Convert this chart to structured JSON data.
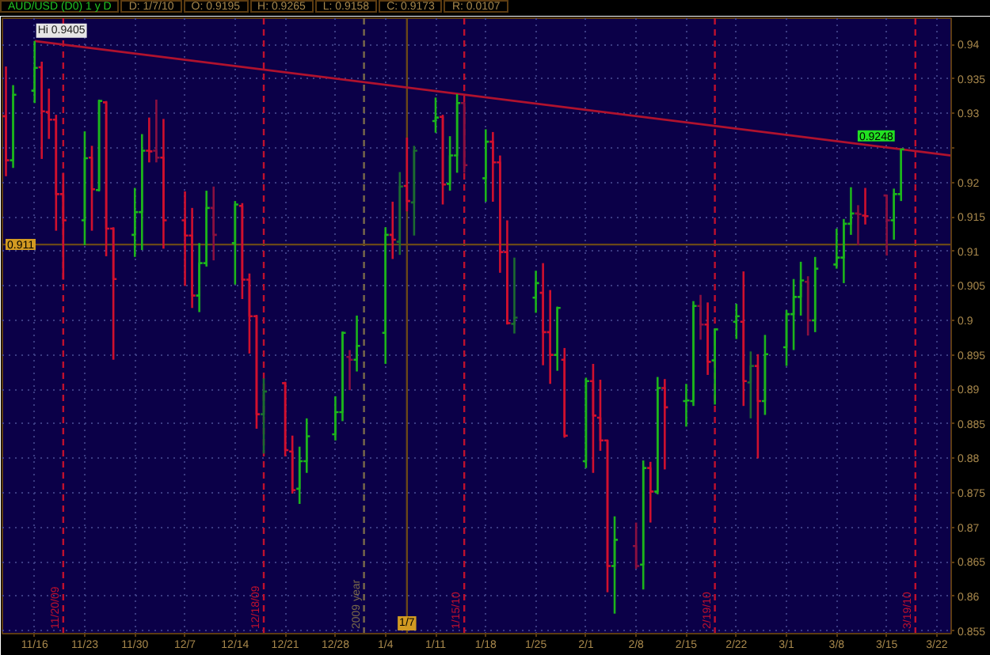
{
  "chart_data": {
    "type": "candlestick",
    "title": "AUD/USD (D0) 1 y D",
    "annotations": [
      "D: 1/7/10",
      "O: 0.9195",
      "H: 0.9265",
      "L: 0.9158",
      "C: 0.9173",
      "R: 0.0107",
      {
        "text": "Hi 0.9405",
        "x": "2009-11-16",
        "y": 0.9405
      },
      {
        "text": "0.9248",
        "x": "2010-03-17",
        "y": 0.9248
      }
    ],
    "x": [
      "2009-11-12",
      "2009-11-13",
      "2009-11-16",
      "2009-11-17",
      "2009-11-18",
      "2009-11-19",
      "2009-11-20",
      "2009-11-23",
      "2009-11-24",
      "2009-11-25",
      "2009-11-26",
      "2009-11-27",
      "2009-11-30",
      "2009-12-01",
      "2009-12-02",
      "2009-12-03",
      "2009-12-04",
      "2009-12-07",
      "2009-12-08",
      "2009-12-09",
      "2009-12-10",
      "2009-12-11",
      "2009-12-14",
      "2009-12-15",
      "2009-12-16",
      "2009-12-17",
      "2009-12-18",
      "2009-12-21",
      "2009-12-22",
      "2009-12-23",
      "2009-12-24",
      "2009-12-28",
      "2009-12-29",
      "2009-12-30",
      "2009-12-31",
      "2010-01-04",
      "2010-01-05",
      "2010-01-06",
      "2010-01-07",
      "2010-01-08",
      "2010-01-11",
      "2010-01-12",
      "2010-01-13",
      "2010-01-14",
      "2010-01-15",
      "2010-01-18",
      "2010-01-19",
      "2010-01-20",
      "2010-01-21",
      "2010-01-22",
      "2010-01-25",
      "2010-01-26",
      "2010-01-27",
      "2010-01-28",
      "2010-01-29",
      "2010-02-01",
      "2010-02-02",
      "2010-02-03",
      "2010-02-04",
      "2010-02-05",
      "2010-02-08",
      "2010-02-09",
      "2010-02-10",
      "2010-02-11",
      "2010-02-12",
      "2010-02-15",
      "2010-02-16",
      "2010-02-17",
      "2010-02-18",
      "2010-02-19",
      "2010-02-22",
      "2010-02-23",
      "2010-02-24",
      "2010-02-25",
      "2010-02-26",
      "2010-03-01",
      "2010-03-02",
      "2010-03-03",
      "2010-03-04",
      "2010-03-05",
      "2010-03-08",
      "2010-03-09",
      "2010-03-10",
      "2010-03-11",
      "2010-03-12",
      "2010-03-15",
      "2010-03-16",
      "2010-03-17"
    ],
    "ohlc": [
      [
        0.9296,
        0.9368,
        0.9209,
        0.9232
      ],
      [
        0.9232,
        0.9341,
        0.9221,
        0.9327
      ],
      [
        0.9333,
        0.9405,
        0.9315,
        0.9366
      ],
      [
        0.9367,
        0.9375,
        0.9234,
        0.9303
      ],
      [
        0.9302,
        0.9336,
        0.9263,
        0.9291
      ],
      [
        0.9291,
        0.9298,
        0.913,
        0.9183
      ],
      [
        0.9183,
        0.9214,
        0.9059,
        0.9145
      ],
      [
        0.9145,
        0.9274,
        0.9109,
        0.9235
      ],
      [
        0.9236,
        0.9253,
        0.913,
        0.919
      ],
      [
        0.9189,
        0.932,
        0.9187,
        0.9318
      ],
      [
        0.9316,
        0.9318,
        0.9093,
        0.9133
      ],
      [
        0.9133,
        0.9135,
        0.8943,
        0.906
      ],
      [
        0.9124,
        0.9192,
        0.9092,
        0.9157
      ],
      [
        0.9157,
        0.927,
        0.9102,
        0.9246
      ],
      [
        0.9246,
        0.9294,
        0.9229,
        0.9245
      ],
      [
        0.9246,
        0.932,
        0.9229,
        0.9236
      ],
      [
        0.9236,
        0.9292,
        0.9104,
        0.9145
      ],
      [
        0.9145,
        0.9187,
        0.905,
        0.9123
      ],
      [
        0.9123,
        0.9163,
        0.9018,
        0.9036
      ],
      [
        0.9036,
        0.9112,
        0.9012,
        0.9083
      ],
      [
        0.9083,
        0.9188,
        0.9078,
        0.9163
      ],
      [
        0.9163,
        0.9194,
        0.9087,
        0.9124
      ],
      [
        0.9112,
        0.9173,
        0.9052,
        0.9168
      ],
      [
        0.9166,
        0.917,
        0.9031,
        0.9059
      ],
      [
        0.9059,
        0.9068,
        0.8952,
        0.9006
      ],
      [
        0.9006,
        0.9008,
        0.8843,
        0.8864
      ],
      [
        0.8864,
        0.8916,
        0.8807,
        0.8897
      ],
      [
        0.8909,
        0.8911,
        0.8803,
        0.8812
      ],
      [
        0.881,
        0.8833,
        0.8749,
        0.8754
      ],
      [
        0.8756,
        0.8817,
        0.8734,
        0.8796
      ],
      [
        0.8796,
        0.8858,
        0.8779,
        0.8832
      ],
      [
        0.8835,
        0.889,
        0.8826,
        0.8867
      ],
      [
        0.8867,
        0.8984,
        0.8854,
        0.8982
      ],
      [
        0.8947,
        0.8957,
        0.8899,
        0.8943
      ],
      [
        0.8943,
        0.9007,
        0.8926,
        0.8963
      ],
      [
        0.8982,
        0.9135,
        0.8937,
        0.9124
      ],
      [
        0.9124,
        0.9172,
        0.9089,
        0.9117
      ],
      [
        0.9114,
        0.9215,
        0.9095,
        0.9194
      ],
      [
        0.9195,
        0.9265,
        0.9158,
        0.9173
      ],
      [
        0.9171,
        0.9253,
        0.9123,
        0.9246
      ],
      [
        0.9289,
        0.9323,
        0.9272,
        0.9294
      ],
      [
        0.9295,
        0.9298,
        0.9168,
        0.9197
      ],
      [
        0.9198,
        0.9267,
        0.9188,
        0.9239
      ],
      [
        0.9239,
        0.9328,
        0.9214,
        0.9315
      ],
      [
        0.9315,
        0.9316,
        0.9214,
        0.9225
      ],
      [
        0.9206,
        0.9277,
        0.9172,
        0.9259
      ],
      [
        0.9259,
        0.9273,
        0.9172,
        0.9229
      ],
      [
        0.9229,
        0.9239,
        0.9069,
        0.9099
      ],
      [
        0.9099,
        0.9145,
        0.8994,
        0.8996
      ],
      [
        0.8995,
        0.9091,
        0.8981,
        0.9004
      ],
      [
        0.9033,
        0.9072,
        0.9011,
        0.9054
      ],
      [
        0.904,
        0.9083,
        0.8935,
        0.8983
      ],
      [
        0.8983,
        0.9044,
        0.8908,
        0.895
      ],
      [
        0.895,
        0.902,
        0.8927,
        0.9018
      ],
      [
        0.8943,
        0.896,
        0.883,
        0.8833
      ],
      [
        0.8796,
        0.8917,
        0.8786,
        0.8912
      ],
      [
        0.8912,
        0.8937,
        0.8779,
        0.8862
      ],
      [
        0.8859,
        0.8914,
        0.8811,
        0.8826
      ],
      [
        0.8826,
        0.8827,
        0.8606,
        0.8644
      ],
      [
        0.8644,
        0.8716,
        0.8575,
        0.8682
      ],
      [
        0.8673,
        0.8707,
        0.864,
        0.8644
      ],
      [
        0.8646,
        0.8797,
        0.861,
        0.8786
      ],
      [
        0.8786,
        0.8795,
        0.8707,
        0.8752
      ],
      [
        0.8752,
        0.8918,
        0.8748,
        0.8902
      ],
      [
        0.8902,
        0.8915,
        0.8784,
        0.8874
      ],
      [
        0.8883,
        0.8908,
        0.8846,
        0.8884
      ],
      [
        0.8883,
        0.9028,
        0.8876,
        0.9021
      ],
      [
        0.9021,
        0.9037,
        0.8972,
        0.8994
      ],
      [
        0.8994,
        0.9026,
        0.8921,
        0.894
      ],
      [
        0.8942,
        0.8988,
        0.8878,
        0.8987
      ],
      [
        0.8998,
        0.9024,
        0.8973,
        0.9006
      ],
      [
        0.8998,
        0.9071,
        0.8876,
        0.8912
      ],
      [
        0.891,
        0.8955,
        0.8858,
        0.8934
      ],
      [
        0.8934,
        0.8951,
        0.88,
        0.8883
      ],
      [
        0.8883,
        0.8979,
        0.8863,
        0.8951
      ],
      [
        0.8961,
        0.9015,
        0.8934,
        0.9009
      ],
      [
        0.9009,
        0.906,
        0.8957,
        0.9034
      ],
      [
        0.9034,
        0.9085,
        0.9007,
        0.9058
      ],
      [
        0.9056,
        0.9064,
        0.8978,
        0.9
      ],
      [
        0.9,
        0.9092,
        0.8983,
        0.9075
      ],
      [
        0.9081,
        0.9133,
        0.9075,
        0.9091
      ],
      [
        0.9091,
        0.9147,
        0.9054,
        0.914
      ],
      [
        0.914,
        0.9193,
        0.9124,
        0.9155
      ],
      [
        0.9155,
        0.9167,
        0.9109,
        0.9154
      ],
      [
        0.9152,
        0.9192,
        0.9139,
        0.9151
      ],
      [
        0.9181,
        0.9182,
        0.9094,
        0.9145
      ],
      [
        0.9145,
        0.9191,
        0.9117,
        0.9183
      ],
      [
        0.9183,
        0.9248,
        0.9173,
        0.9248
      ]
    ],
    "colors": [
      "#d0102e",
      "#1cb41c",
      "#1cb41c",
      "#d0102e",
      "#d0102e",
      "#d0102e",
      "#d0102e",
      "#1cb41c",
      "#d0102e",
      "#1cb41c",
      "#d0102e",
      "#d0102e",
      "#1cb41c",
      "#1cb41c",
      "#d0102e",
      "#8a1040",
      "#d0102e",
      "#d0102e",
      "#d0102e",
      "#1cb41c",
      "#1cb41c",
      "#8a1040",
      "#1cb41c",
      "#d0102e",
      "#d0102e",
      "#d0102e",
      "#1c6b30",
      "#d0102e",
      "#d0102e",
      "#1cb41c",
      "#1cb41c",
      "#1cb41c",
      "#1cb41c",
      "#8a1040",
      "#1cb41c",
      "#1cb41c",
      "#d0102e",
      "#1c6b30",
      "#d0102e",
      "#1c6b30",
      "#1cb41c",
      "#d0102e",
      "#1cb41c",
      "#1cb41c",
      "#8a1040",
      "#1cb41c",
      "#d0102e",
      "#d0102e",
      "#d0102e",
      "#1c6b30",
      "#1cb41c",
      "#d0102e",
      "#d0102e",
      "#1cb41c",
      "#d0102e",
      "#1cb41c",
      "#d0102e",
      "#d0102e",
      "#d0102e",
      "#1cb41c",
      "#8a1040",
      "#1cb41c",
      "#d0102e",
      "#1cb41c",
      "#d0102e",
      "#1cb41c",
      "#1cb41c",
      "#8a1040",
      "#d0102e",
      "#1cb41c",
      "#1cb41c",
      "#d0102e",
      "#1c6b30",
      "#d0102e",
      "#1cb41c",
      "#1cb41c",
      "#1cb41c",
      "#1cb41c",
      "#8a1040",
      "#1cb41c",
      "#1cb41c",
      "#1cb41c",
      "#1cb41c",
      "#8a1040",
      "#d0102e",
      "#8a1040",
      "#1cb41c",
      "#1cb41c"
    ],
    "xlim": [
      "2009-11-11T12:00",
      "2010-03-24"
    ],
    "xticks": [
      {
        "value": "2009-11-16",
        "label": "11/16"
      },
      {
        "value": "2009-11-23",
        "label": "11/23"
      },
      {
        "value": "2009-11-30",
        "label": "11/30"
      },
      {
        "value": "2009-12-07",
        "label": "12/7"
      },
      {
        "value": "2009-12-14",
        "label": "12/14"
      },
      {
        "value": "2009-12-21",
        "label": "12/21"
      },
      {
        "value": "2009-12-28",
        "label": "12/28"
      },
      {
        "value": "2010-01-04",
        "label": "1/4"
      },
      {
        "value": "2010-01-11",
        "label": "1/11"
      },
      {
        "value": "2010-01-18",
        "label": "1/18"
      },
      {
        "value": "2010-01-25",
        "label": "1/25"
      },
      {
        "value": "2010-02-01",
        "label": "2/1"
      },
      {
        "value": "2010-02-08",
        "label": "2/8"
      },
      {
        "value": "2010-02-15",
        "label": "2/15"
      },
      {
        "value": "2010-02-22",
        "label": "2/22"
      },
      {
        "value": "2010-03-01",
        "label": "3/1"
      },
      {
        "value": "2010-03-08",
        "label": "3/8"
      },
      {
        "value": "2010-03-15",
        "label": "3/15"
      },
      {
        "value": "2010-03-22",
        "label": "3/22"
      }
    ],
    "ylim": [
      0.8546,
      0.9438
    ],
    "yticks": [
      0.855,
      0.86,
      0.865,
      0.87,
      0.875,
      0.88,
      0.885,
      0.89,
      0.895,
      0.9,
      0.905,
      0.91,
      0.915,
      0.92,
      {
        "value": 0.925,
        "label": null
      },
      0.93,
      0.935,
      0.94
    ],
    "grid": true,
    "series": [
      {
        "type": "line",
        "x": [
          "2009-11-16",
          "2010-03-24"
        ],
        "values": [
          0.9405,
          0.9239
        ],
        "color": "#b0122e"
      }
    ],
    "ref_lines": [
      {
        "axis": "x",
        "value": "2009-11-20",
        "label": "11/20/09",
        "color": "#c0102e",
        "line_style": "dashed"
      },
      {
        "axis": "x",
        "value": "2009-12-18",
        "label": "12/18/09",
        "color": "#c0102e",
        "line_style": "dashed"
      },
      {
        "axis": "x",
        "value": "2010-01-01",
        "label": "2009 year",
        "color": "#7a6a4a",
        "line_style": "dashed"
      },
      {
        "axis": "x",
        "value": "2010-01-15",
        "label": "1/15/10",
        "color": "#c0102e",
        "line_style": "dashed"
      },
      {
        "axis": "x",
        "value": "2010-02-19",
        "label": "2/19/10",
        "color": "#c0102e",
        "line_style": "dashed"
      },
      {
        "axis": "x",
        "value": "2010-03-19",
        "label": "3/19/10",
        "color": "#c0102e",
        "line_style": "dashed"
      },
      {
        "axis": "x",
        "value": "2010-01-07",
        "label": "1/7",
        "color": "#6a4818",
        "line_style": "solid"
      },
      {
        "axis": "y",
        "value": 0.911,
        "label": "0.911",
        "color": "#6a4818",
        "line_style": "solid"
      }
    ]
  }
}
